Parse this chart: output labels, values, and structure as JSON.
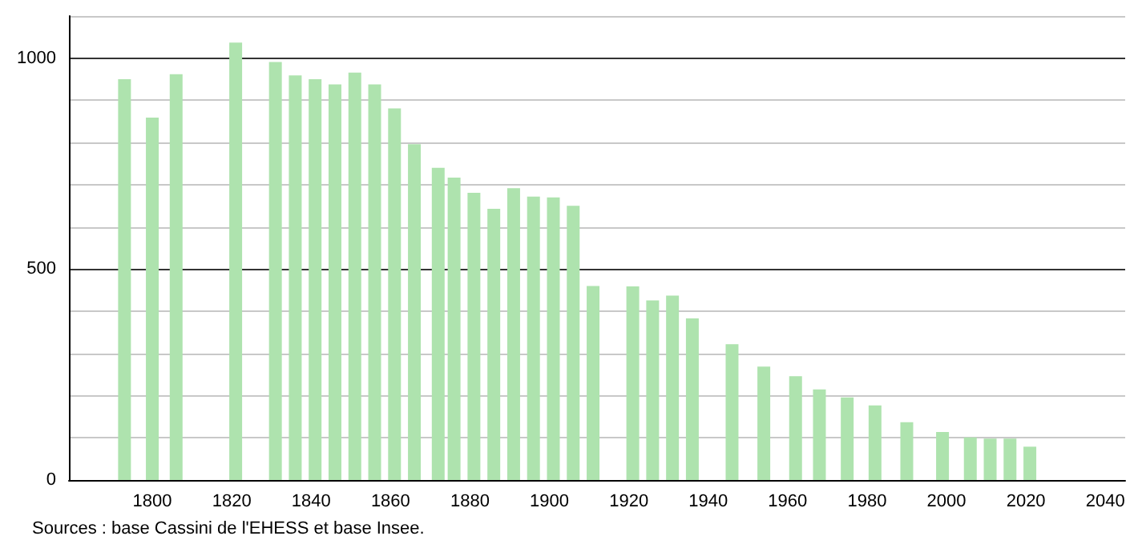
{
  "chart_data": {
    "type": "bar",
    "color": "#aee3ae",
    "x": [
      1793,
      1800,
      1806,
      1821,
      1831,
      1836,
      1841,
      1846,
      1851,
      1856,
      1861,
      1866,
      1872,
      1876,
      1881,
      1886,
      1891,
      1896,
      1901,
      1906,
      1911,
      1921,
      1926,
      1931,
      1936,
      1946,
      1954,
      1962,
      1968,
      1975,
      1982,
      1990,
      1999,
      2006,
      2011,
      2016,
      2021
    ],
    "values": [
      950,
      859,
      962,
      1037,
      991,
      959,
      950,
      938,
      966,
      938,
      881,
      796,
      740,
      717,
      681,
      643,
      692,
      672,
      670,
      650,
      460,
      459,
      426,
      437,
      383,
      322,
      269,
      246,
      215,
      196,
      177,
      137,
      114,
      101,
      98,
      98,
      79
    ],
    "xlim": [
      1779,
      2045
    ],
    "xticks": [
      1800,
      1820,
      1840,
      1860,
      1880,
      1900,
      1920,
      1940,
      1960,
      1980,
      2000,
      2020,
      2040
    ],
    "ylim": [
      0,
      1100
    ],
    "yticks": [
      0,
      {
        "value": 100,
        "label": null
      },
      {
        "value": 200,
        "label": null
      },
      {
        "value": 300,
        "label": null
      },
      {
        "value": 400,
        "label": null
      },
      500,
      {
        "value": 600,
        "label": null
      },
      {
        "value": 700,
        "label": null
      },
      {
        "value": 800,
        "label": null
      },
      {
        "value": 900,
        "label": null
      },
      1000,
      {
        "value": 1100,
        "label": null
      }
    ],
    "grid": "y",
    "annotations": [
      "Sources : base Cassini de l'EHESS et base Insee."
    ]
  }
}
